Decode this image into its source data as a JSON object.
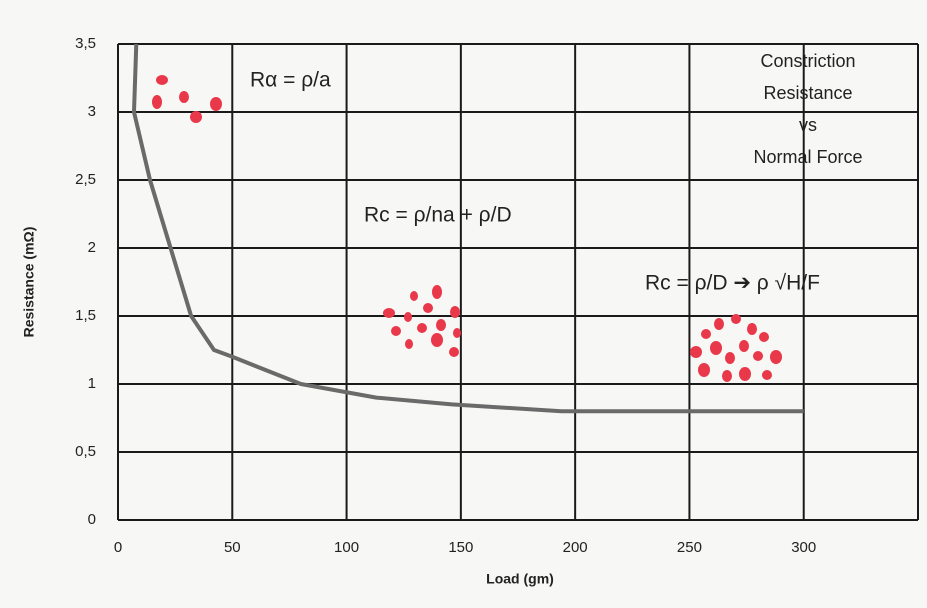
{
  "chart_data": {
    "type": "line",
    "title": [
      "Constriction",
      "Resistance",
      "vs",
      "Normal Force"
    ],
    "x_label": "Load (gm)",
    "y_label": "Resistance (mΩ)",
    "annotations": [
      "Rα = ρ/a",
      "Rc = ρ/na + ρ/D",
      "Rc = ρ/D ➔ ρ √H/F"
    ],
    "x": [
      8,
      7,
      14,
      23,
      32,
      42,
      50,
      80,
      113,
      146,
      194,
      300
    ],
    "series": [
      {
        "color": "#6a6a6a",
        "values": [
          3.5,
          3.0,
          2.5,
          2.0,
          1.5,
          1.25,
          1.2,
          1.0,
          0.9,
          0.85,
          0.8,
          0.8
        ]
      }
    ],
    "xlim": [
      0,
      350
    ],
    "ylim": [
      0,
      3.5
    ],
    "xticks": [
      0,
      50,
      100,
      150,
      200,
      250,
      300
    ],
    "yticks": [
      0,
      {
        "value": 0.5,
        "label": "0,5"
      },
      1,
      {
        "value": 1.5,
        "label": "1,5"
      },
      2,
      {
        "value": 2.5,
        "label": "2,5"
      },
      3,
      {
        "value": 3.5,
        "label": "3,5"
      }
    ],
    "grid": true
  }
}
